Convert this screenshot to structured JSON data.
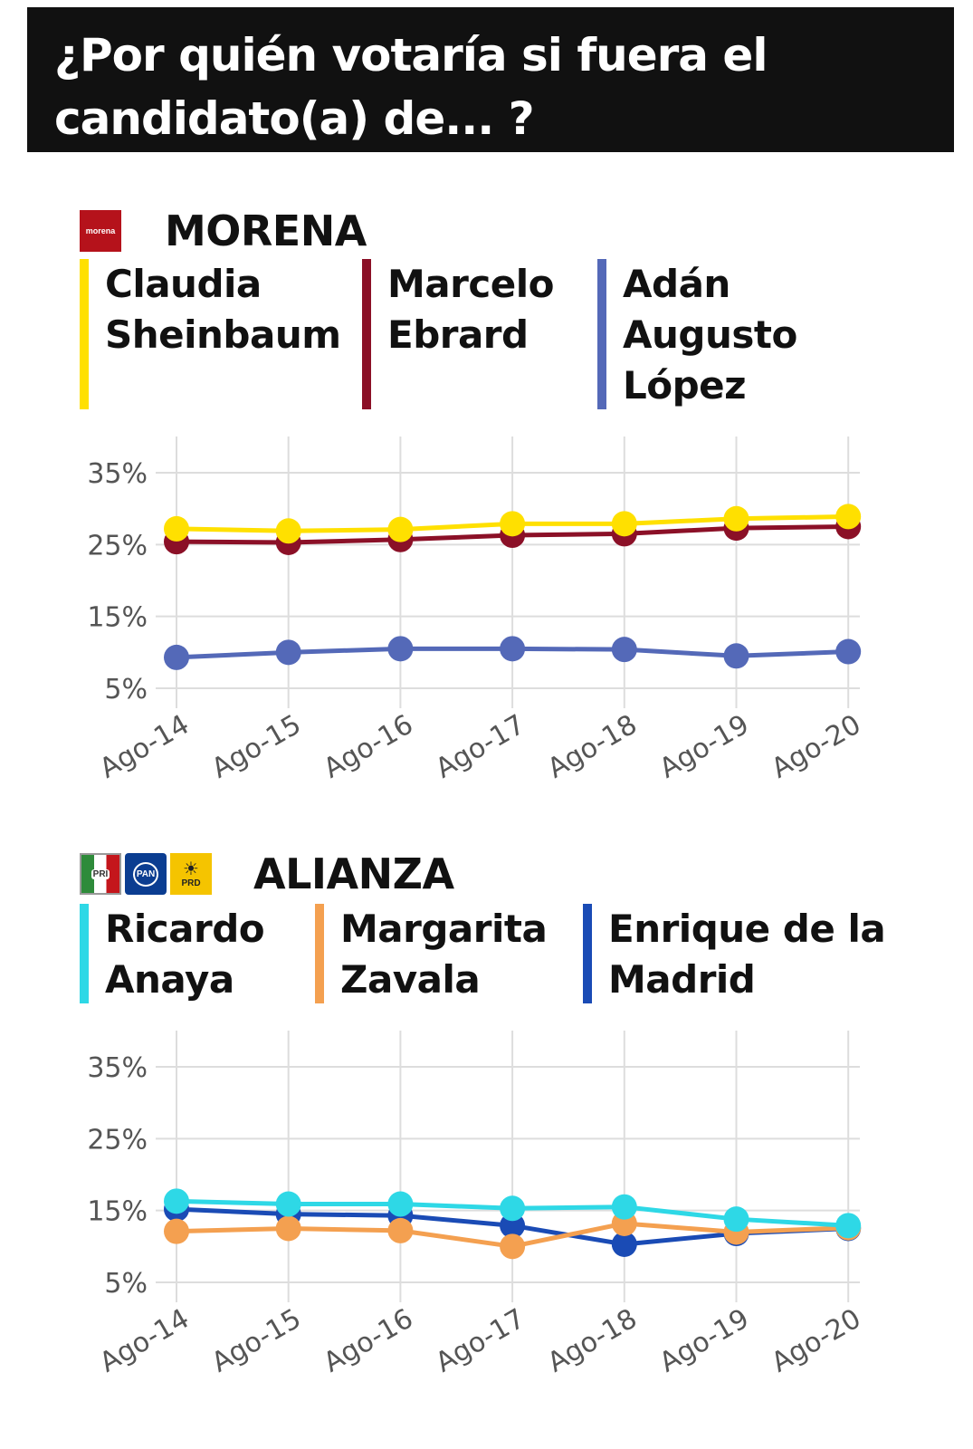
{
  "header": {
    "title": "¿Por quién votaría si fuera el candidato(a) de... ?"
  },
  "sections": [
    {
      "party": "MORENA",
      "logo_text": "morena",
      "candidates": [
        {
          "label": "Claudia\nSheinbaum",
          "color": "#FFE000"
        },
        {
          "label": "Marcelo\nEbrard",
          "color": "#8B1027"
        },
        {
          "label": "Adán\nAugusto\nLópez",
          "color": "#5469B8"
        }
      ]
    },
    {
      "party": "ALIANZA",
      "logos": [
        {
          "name": "pri-logo",
          "text": "PRI"
        },
        {
          "name": "pan-logo",
          "text": "PAN"
        },
        {
          "name": "prd-logo",
          "text": "PRD"
        }
      ],
      "candidates": [
        {
          "label": "Ricardo\nAnaya",
          "color": "#2ED8E6"
        },
        {
          "label": "Margarita\nZavala",
          "color": "#F4A050"
        },
        {
          "label": "Enrique de la\nMadrid",
          "color": "#1A4BB5"
        }
      ]
    }
  ],
  "chart_data": [
    {
      "type": "line",
      "x": [
        "Ago-14",
        "Ago-15",
        "Ago-16",
        "Ago-17",
        "Ago-18",
        "Ago-19",
        "Ago-20"
      ],
      "y_ticks": [
        "35%",
        "25%",
        "15%",
        "5%"
      ],
      "ylim": [
        5,
        35
      ],
      "grid": true,
      "series": [
        {
          "name": "Adán Augusto López",
          "color": "#5469B8",
          "values": [
            9.3,
            10.0,
            10.5,
            10.5,
            10.4,
            9.5,
            10.1
          ]
        },
        {
          "name": "Marcelo Ebrard",
          "color": "#8B1027",
          "values": [
            25.4,
            25.3,
            25.7,
            26.3,
            26.5,
            27.3,
            27.5
          ]
        },
        {
          "name": "Claudia Sheinbaum",
          "color": "#FFE000",
          "values": [
            27.2,
            26.9,
            27.1,
            27.9,
            27.9,
            28.6,
            28.9
          ]
        }
      ]
    },
    {
      "type": "line",
      "x": [
        "Ago-14",
        "Ago-15",
        "Ago-16",
        "Ago-17",
        "Ago-18",
        "Ago-19",
        "Ago-20"
      ],
      "y_ticks": [
        "35%",
        "25%",
        "15%",
        "5%"
      ],
      "ylim": [
        5,
        35
      ],
      "grid": true,
      "series": [
        {
          "name": "Enrique de la Madrid",
          "color": "#1A4BB5",
          "values": [
            15.2,
            14.5,
            14.3,
            12.9,
            10.3,
            11.8,
            12.5
          ]
        },
        {
          "name": "Margarita Zavala",
          "color": "#F4A050",
          "values": [
            12.1,
            12.5,
            12.2,
            10.0,
            13.2,
            12.0,
            12.6
          ]
        },
        {
          "name": "Ricardo Anaya",
          "color": "#2ED8E6",
          "values": [
            16.3,
            15.9,
            15.9,
            15.3,
            15.5,
            13.8,
            12.9
          ]
        }
      ]
    }
  ]
}
